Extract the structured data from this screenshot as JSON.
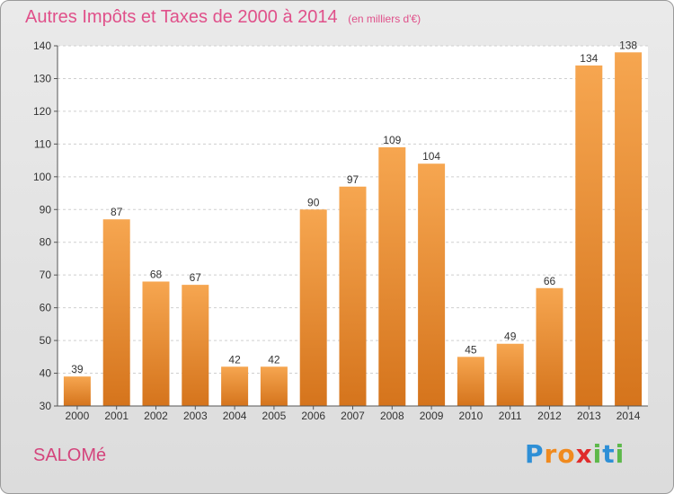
{
  "title": "Autres Impôts et Taxes de 2000 à 2014",
  "unit": "(en milliers d'€)",
  "place": "SALOMé",
  "logo": {
    "letters": [
      "P",
      "r",
      "o",
      "x",
      "i",
      "t",
      "i"
    ],
    "colors": [
      "#2e8fd6",
      "#f08a1e",
      "#f08a1e",
      "#e02b2b",
      "#5db84a",
      "#2e8fd6",
      "#5db84a"
    ]
  },
  "colors": {
    "bar_top": "#f6a650",
    "bar_bottom": "#d5741c",
    "title": "#e0508a"
  },
  "chart_data": {
    "type": "bar",
    "categories": [
      "2000",
      "2001",
      "2002",
      "2003",
      "2004",
      "2005",
      "2006",
      "2007",
      "2008",
      "2009",
      "2010",
      "2011",
      "2012",
      "2013",
      "2014"
    ],
    "values": [
      39,
      87,
      68,
      67,
      42,
      42,
      90,
      97,
      109,
      104,
      45,
      49,
      66,
      134,
      138
    ],
    "ylim": [
      30,
      140
    ],
    "yticks": [
      30,
      40,
      50,
      60,
      70,
      80,
      90,
      100,
      110,
      120,
      130,
      140
    ],
    "grid": true
  }
}
